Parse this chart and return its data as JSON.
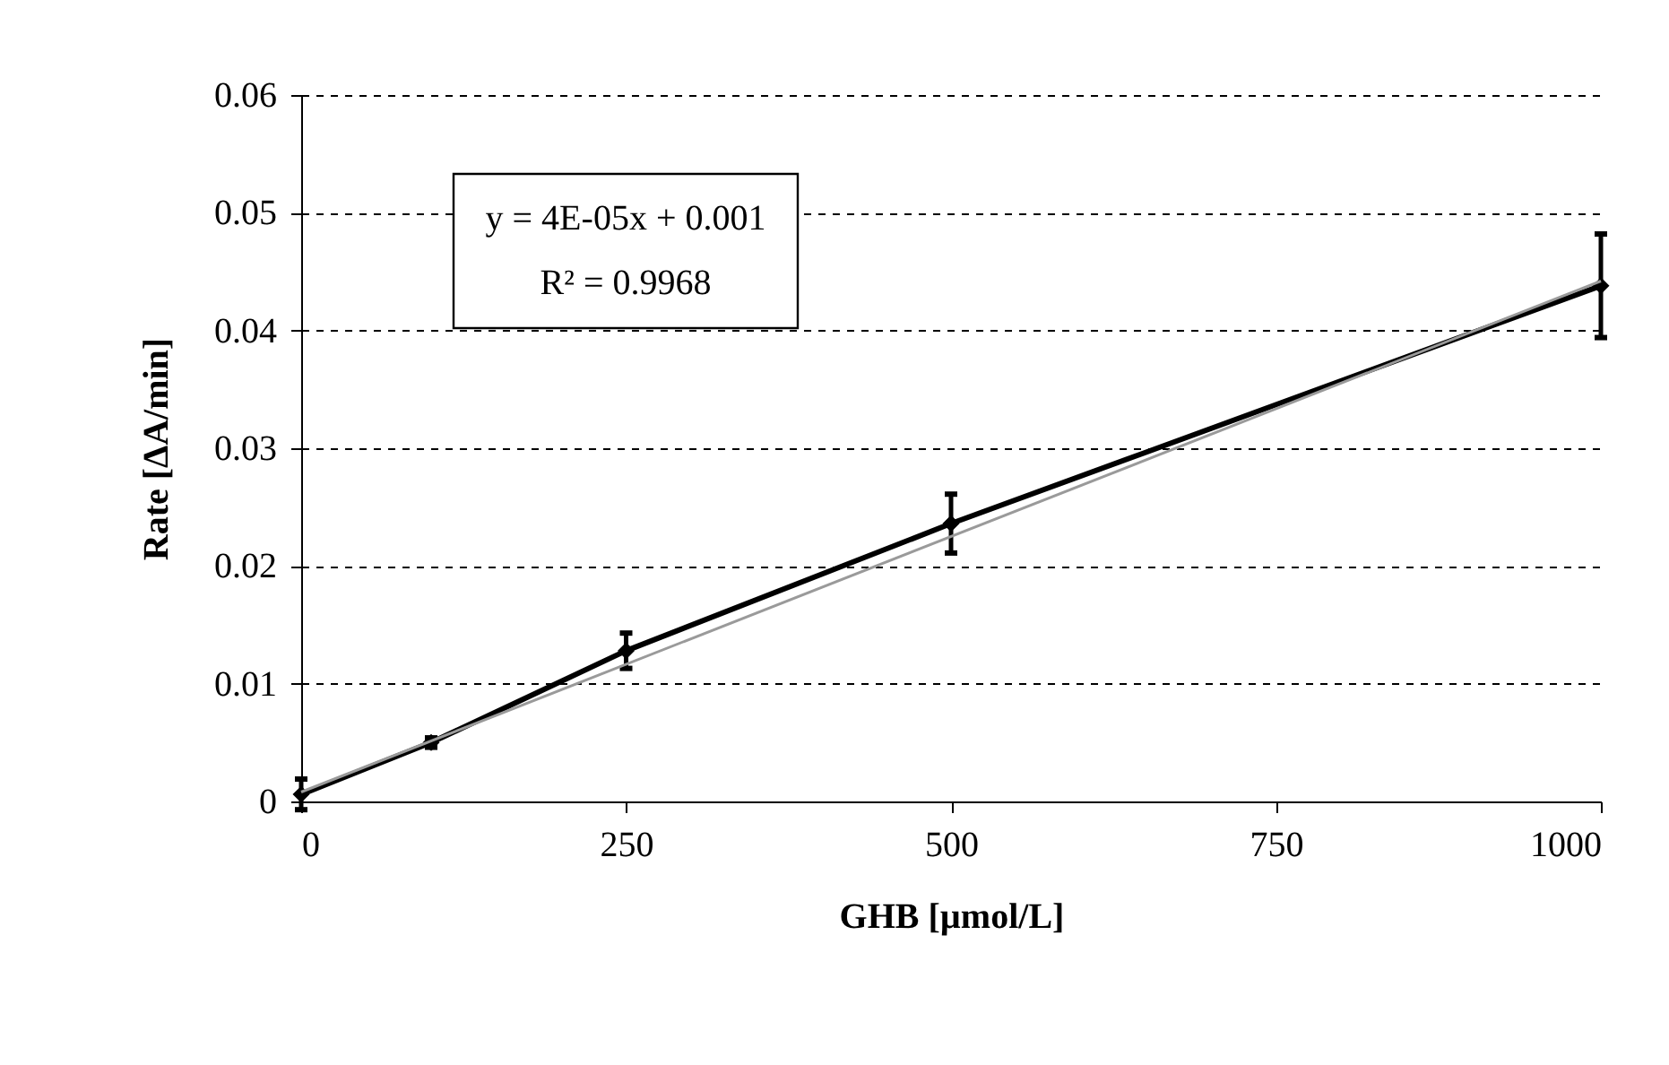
{
  "chart_data": {
    "type": "line",
    "xlabel": "GHB [µmol/L]",
    "ylabel": "Rate [ΔA/min]",
    "x": [
      0,
      100,
      250,
      500,
      1000
    ],
    "series": [
      {
        "color": "#000000",
        "values": [
          0.0006,
          0.005,
          0.0128,
          0.0236,
          0.0438
        ],
        "errors": [
          0.0013,
          0.0004,
          0.0015,
          0.0025,
          0.0044
        ],
        "marker": "diamond"
      },
      {
        "type": "line",
        "x": [
          0,
          1000
        ],
        "color": "#9a9a9a",
        "values": [
          0.0008,
          0.0442
        ],
        "marker": "none"
      }
    ],
    "annotations": [
      "y = 4E-05x + 0.001",
      "R² = 0.9968"
    ],
    "xlim": [
      0,
      1000
    ],
    "xticks": [
      0,
      250,
      500,
      750,
      1000
    ],
    "ylim": [
      0,
      0.06
    ],
    "yticks": [
      0,
      0.01,
      0.02,
      0.03,
      0.04,
      0.05,
      0.06
    ],
    "grid": "y"
  }
}
